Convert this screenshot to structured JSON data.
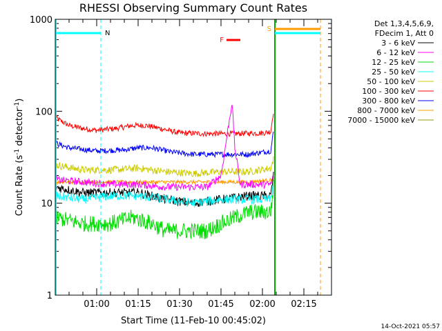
{
  "chart_data": {
    "type": "line",
    "title": "RHESSI Observing Summary Count Rates",
    "xlabel": "Start Time (11-Feb-10 00:45:02)",
    "ylabel_main": "Count Rate (s",
    "ylabel_sup1": "-1",
    "ylabel_mid": " detector",
    "ylabel_sup2": "-1",
    "ylabel_end": ")",
    "ylog": true,
    "ylim": [
      1,
      1000
    ],
    "xlim_minutes": [
      0,
      100
    ],
    "y_ticks": [
      "1",
      "10",
      "100",
      "1000"
    ],
    "x_ticks": [
      {
        "label": "01:00",
        "minute": 15
      },
      {
        "label": "01:15",
        "minute": 30
      },
      {
        "label": "01:30",
        "minute": 45
      },
      {
        "label": "01:45",
        "minute": 60
      },
      {
        "label": "02:00",
        "minute": 75
      },
      {
        "label": "02:15",
        "minute": 90
      }
    ],
    "legend": {
      "placement": "right",
      "header": [
        "Det 1,3,4,5,6,9,",
        "FDecim 1, Att 0"
      ],
      "entries": [
        {
          "label": "3 - 6 keV",
          "color": "#000000"
        },
        {
          "label": "6 - 12 keV",
          "color": "#ff00ff"
        },
        {
          "label": "12 - 25 keV",
          "color": "#00dd00"
        },
        {
          "label": "25 - 50 keV",
          "color": "#00ffff"
        },
        {
          "label": "50 - 100 keV",
          "color": "#cccc00"
        },
        {
          "label": "100 - 300 keV",
          "color": "#ff0000"
        },
        {
          "label": "300 - 800 keV",
          "color": "#0000ff"
        },
        {
          "label": "800 - 7000 keV",
          "color": "#ff9900"
        },
        {
          "label": "7000 - 15000 keV",
          "color": "#999900"
        }
      ]
    },
    "series": [
      {
        "color": "#ff0000",
        "noise": 0.03,
        "points": [
          [
            0,
            85
          ],
          [
            5,
            70
          ],
          [
            10,
            65
          ],
          [
            15,
            62
          ],
          [
            22,
            65
          ],
          [
            28,
            70
          ],
          [
            33,
            70
          ],
          [
            38,
            65
          ],
          [
            45,
            58
          ],
          [
            55,
            57
          ],
          [
            60,
            57
          ],
          [
            65,
            57
          ],
          [
            75,
            58
          ],
          [
            78,
            60
          ],
          [
            79,
            100
          ]
        ]
      },
      {
        "color": "#0000ff",
        "noise": 0.03,
        "points": [
          [
            0,
            45
          ],
          [
            5,
            40
          ],
          [
            15,
            37
          ],
          [
            25,
            38
          ],
          [
            30,
            40
          ],
          [
            35,
            40
          ],
          [
            42,
            36
          ],
          [
            50,
            34
          ],
          [
            60,
            34
          ],
          [
            70,
            34
          ],
          [
            78,
            37
          ],
          [
            79,
            60
          ]
        ]
      },
      {
        "color": "#cccc00",
        "noise": 0.04,
        "points": [
          [
            0,
            26
          ],
          [
            10,
            23
          ],
          [
            20,
            23
          ],
          [
            30,
            24
          ],
          [
            40,
            22
          ],
          [
            50,
            21
          ],
          [
            60,
            22
          ],
          [
            70,
            22
          ],
          [
            78,
            24
          ],
          [
            79,
            30
          ]
        ]
      },
      {
        "color": "#ff9900",
        "noise": 0.02,
        "points": [
          [
            0,
            17
          ],
          [
            30,
            17
          ],
          [
            50,
            17
          ],
          [
            60,
            17
          ],
          [
            70,
            17
          ],
          [
            79,
            18
          ]
        ]
      },
      {
        "color": "#ff00ff",
        "noise": 0.04,
        "points": [
          [
            0,
            18
          ],
          [
            10,
            17
          ],
          [
            20,
            16
          ],
          [
            30,
            16
          ],
          [
            40,
            15
          ],
          [
            50,
            15
          ],
          [
            55,
            15
          ],
          [
            60,
            20
          ],
          [
            64,
            125
          ],
          [
            65,
            40
          ],
          [
            67,
            16
          ],
          [
            78,
            16
          ],
          [
            79,
            20
          ]
        ]
      },
      {
        "color": "#000000",
        "noise": 0.05,
        "points": [
          [
            0,
            15
          ],
          [
            10,
            13
          ],
          [
            20,
            13
          ],
          [
            30,
            13
          ],
          [
            40,
            11
          ],
          [
            50,
            10
          ],
          [
            60,
            11
          ],
          [
            70,
            12
          ],
          [
            78,
            12
          ],
          [
            79,
            20
          ]
        ]
      },
      {
        "color": "#00ffff",
        "noise": 0.05,
        "points": [
          [
            0,
            12
          ],
          [
            10,
            11
          ],
          [
            20,
            12
          ],
          [
            30,
            12
          ],
          [
            40,
            11
          ],
          [
            50,
            10
          ],
          [
            60,
            11
          ],
          [
            70,
            11
          ],
          [
            78,
            11
          ],
          [
            79,
            17
          ]
        ]
      },
      {
        "color": "#00dd00",
        "noise": 0.09,
        "points": [
          [
            0,
            7
          ],
          [
            10,
            6
          ],
          [
            20,
            6
          ],
          [
            28,
            7
          ],
          [
            35,
            6
          ],
          [
            40,
            5
          ],
          [
            50,
            5
          ],
          [
            55,
            5
          ],
          [
            60,
            6
          ],
          [
            65,
            7
          ],
          [
            70,
            8
          ],
          [
            78,
            8
          ],
          [
            79,
            15
          ]
        ]
      }
    ],
    "annotations": {
      "n_label": "N",
      "n_minute": 16.5,
      "s_label": "S",
      "s_minute": 79.5,
      "f_label": "F",
      "f_minute": 63,
      "f_end_minute": 67,
      "end_minute": 96
    }
  },
  "footer": {
    "timestamp": "14-Oct-2021 05:57"
  }
}
